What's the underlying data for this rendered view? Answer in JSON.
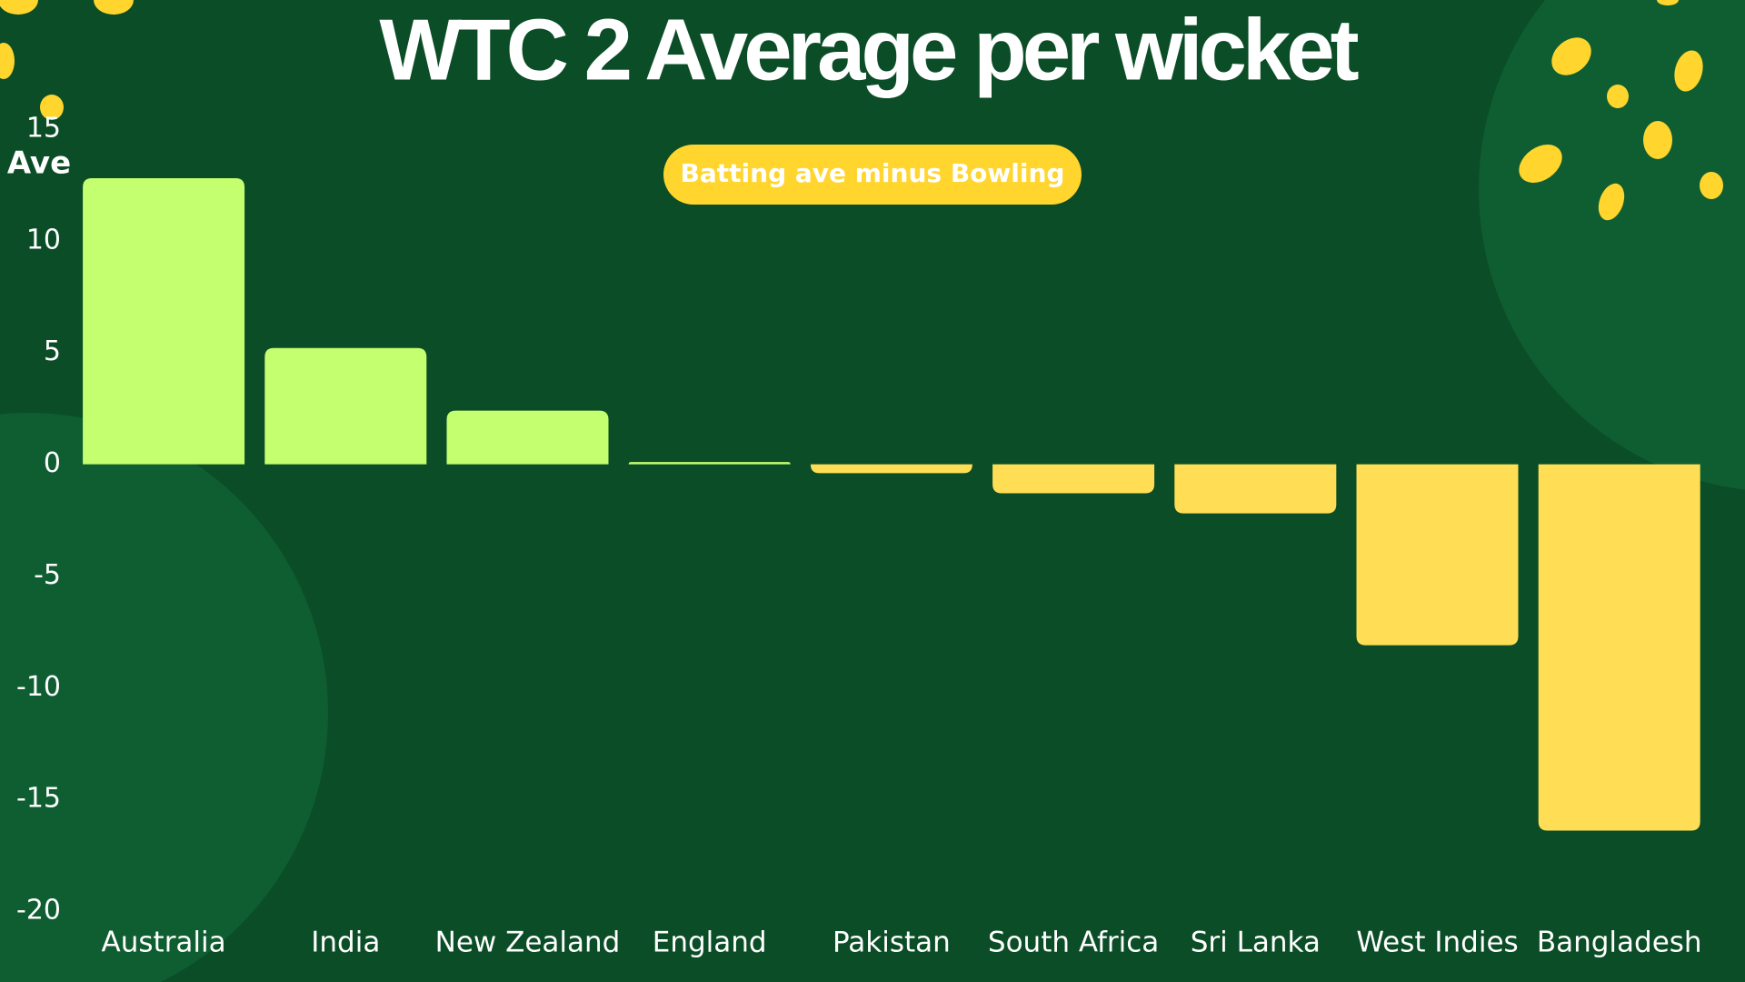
{
  "chart_data": {
    "type": "bar",
    "title": "WTC 2 Average per wicket",
    "subtitle": "Batting ave minus Bowling",
    "y_label": "Ave",
    "categories": [
      "Australia",
      "India",
      "New Zealand",
      "England",
      "Pakistan",
      "South Africa",
      "Sri Lanka",
      "West Indies",
      "Bangladesh"
    ],
    "values": [
      12.8,
      5.2,
      2.4,
      0.1,
      -0.4,
      -1.3,
      -2.2,
      -8.1,
      -16.4
    ],
    "colors": [
      "#c3ff6e",
      "#c3ff6e",
      "#c3ff6e",
      "#c3ff6e",
      "#ffde55",
      "#ffde55",
      "#ffde55",
      "#ffde55",
      "#ffde55"
    ],
    "ylim": [
      -20,
      15
    ],
    "yticks": [
      -20,
      -15,
      -10,
      -5,
      0,
      5,
      10,
      15
    ],
    "grid": false
  }
}
